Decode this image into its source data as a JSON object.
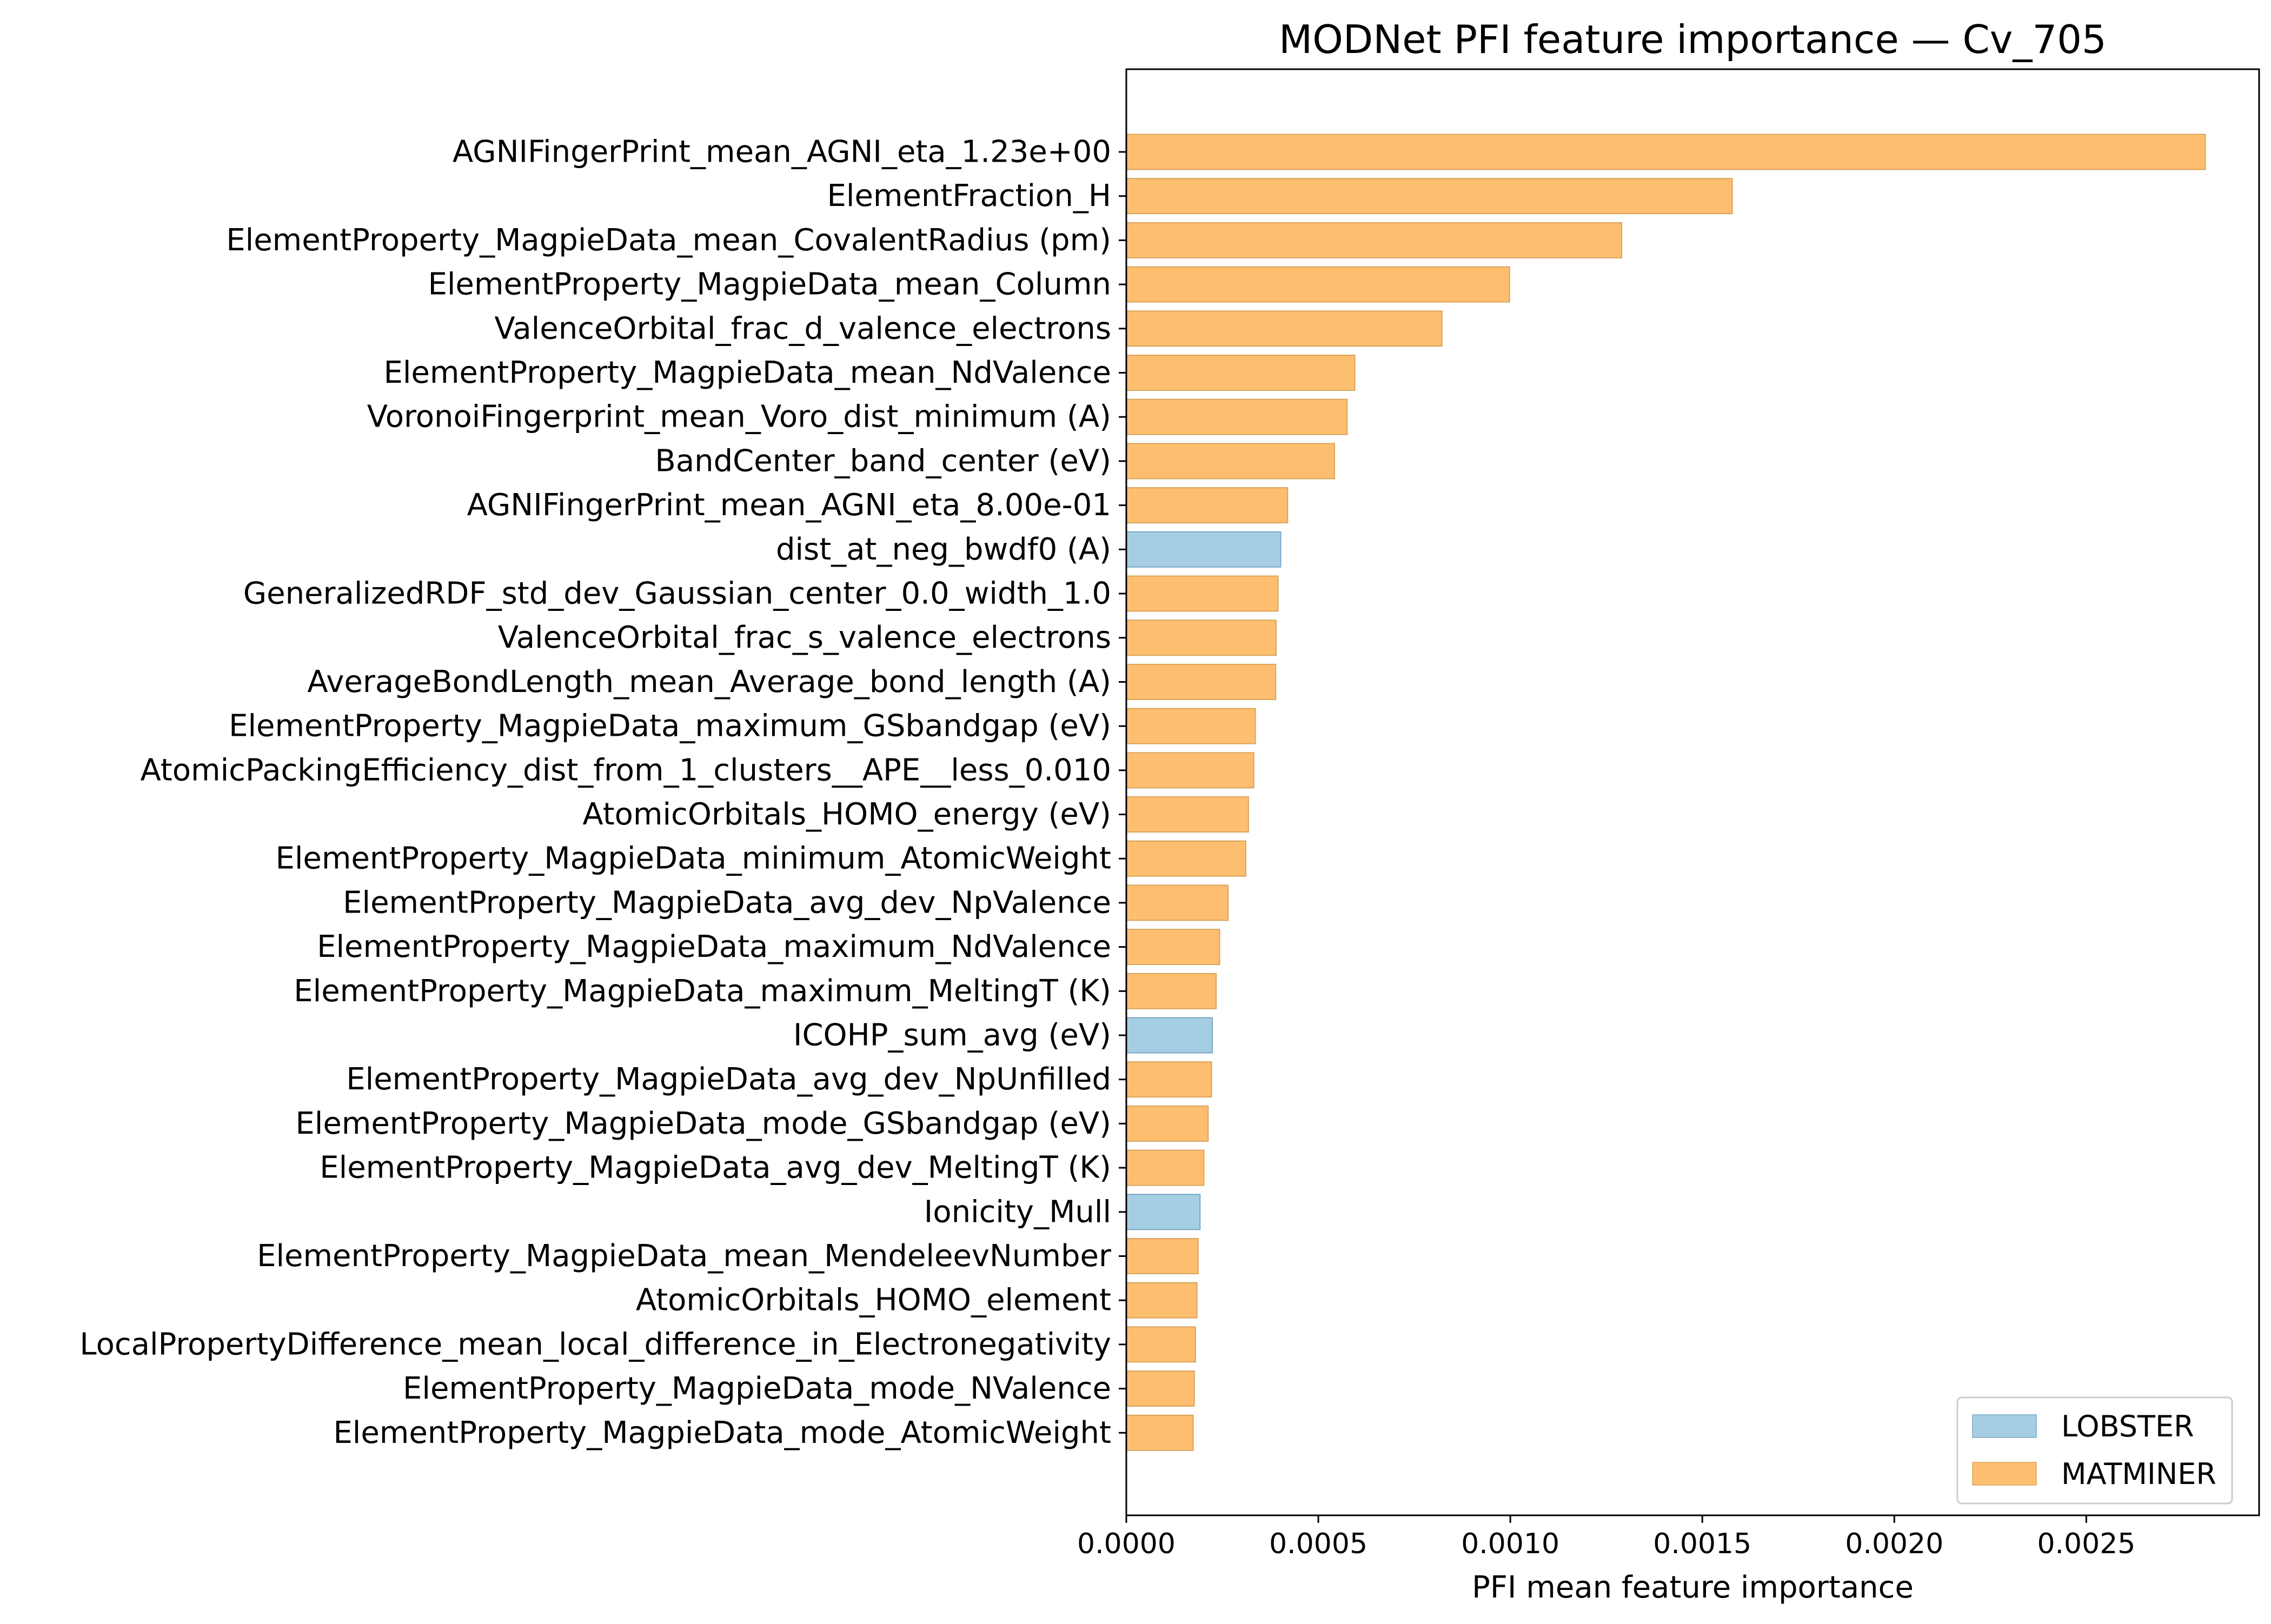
{
  "chart_data": {
    "type": "bar",
    "orientation": "horizontal",
    "title": "MODNet PFI feature importance — Cv_705",
    "xlabel": "PFI mean feature importance",
    "ylabel": "",
    "xlim": [
      0,
      0.00295
    ],
    "xticks": [
      "0.0000",
      "0.0005",
      "0.0010",
      "0.0015",
      "0.0020",
      "0.0025"
    ],
    "xtick_values": [
      0,
      0.0005,
      0.001,
      0.0015,
      0.002,
      0.0025
    ],
    "grid": false,
    "legend_position": "bottom-right",
    "legend": [
      {
        "name": "LOBSTER",
        "color": "#a6cee3"
      },
      {
        "name": "MATMINER",
        "color": "#fdbf6f"
      }
    ],
    "bars": [
      {
        "label": "AGNIFingerPrint_mean_AGNI_eta_1.23e+00",
        "value": 0.00281,
        "group": "MATMINER"
      },
      {
        "label": "ElementFraction_H",
        "value": 0.001578,
        "group": "MATMINER"
      },
      {
        "label": "ElementProperty_MagpieData_mean_CovalentRadius (pm)",
        "value": 0.00129,
        "group": "MATMINER"
      },
      {
        "label": "ElementProperty_MagpieData_mean_Column",
        "value": 0.000998,
        "group": "MATMINER"
      },
      {
        "label": "ValenceOrbital_frac_d_valence_electrons",
        "value": 0.000822,
        "group": "MATMINER"
      },
      {
        "label": "ElementProperty_MagpieData_mean_NdValence",
        "value": 0.000595,
        "group": "MATMINER"
      },
      {
        "label": "VoronoiFingerprint_mean_Voro_dist_minimum (A)",
        "value": 0.000575,
        "group": "MATMINER"
      },
      {
        "label": "BandCenter_band_center (eV)",
        "value": 0.000542,
        "group": "MATMINER"
      },
      {
        "label": "AGNIFingerPrint_mean_AGNI_eta_8.00e-01",
        "value": 0.00042,
        "group": "MATMINER"
      },
      {
        "label": "dist_at_neg_bwdf0 (A)",
        "value": 0.000402,
        "group": "LOBSTER"
      },
      {
        "label": "GeneralizedRDF_std_dev_Gaussian_center_0.0_width_1.0",
        "value": 0.000395,
        "group": "MATMINER"
      },
      {
        "label": "ValenceOrbital_frac_s_valence_electrons",
        "value": 0.00039,
        "group": "MATMINER"
      },
      {
        "label": "AverageBondLength_mean_Average_bond_length (A)",
        "value": 0.000389,
        "group": "MATMINER"
      },
      {
        "label": "ElementProperty_MagpieData_maximum_GSbandgap (eV)",
        "value": 0.000336,
        "group": "MATMINER"
      },
      {
        "label": "AtomicPackingEfficiency_dist_from_1_clusters__APE__less_0.010",
        "value": 0.000332,
        "group": "MATMINER"
      },
      {
        "label": "AtomicOrbitals_HOMO_energy (eV)",
        "value": 0.000318,
        "group": "MATMINER"
      },
      {
        "label": "ElementProperty_MagpieData_minimum_AtomicWeight",
        "value": 0.000311,
        "group": "MATMINER"
      },
      {
        "label": "ElementProperty_MagpieData_avg_dev_NpValence",
        "value": 0.000265,
        "group": "MATMINER"
      },
      {
        "label": "ElementProperty_MagpieData_maximum_NdValence",
        "value": 0.000243,
        "group": "MATMINER"
      },
      {
        "label": "ElementProperty_MagpieData_maximum_MeltingT (K)",
        "value": 0.000234,
        "group": "MATMINER"
      },
      {
        "label": "ICOHP_sum_avg (eV)",
        "value": 0.000224,
        "group": "LOBSTER"
      },
      {
        "label": "ElementProperty_MagpieData_avg_dev_NpUnfilled",
        "value": 0.000222,
        "group": "MATMINER"
      },
      {
        "label": "ElementProperty_MagpieData_mode_GSbandgap (eV)",
        "value": 0.000213,
        "group": "MATMINER"
      },
      {
        "label": "ElementProperty_MagpieData_avg_dev_MeltingT (K)",
        "value": 0.000202,
        "group": "MATMINER"
      },
      {
        "label": "Ionicity_Mull",
        "value": 0.000192,
        "group": "LOBSTER"
      },
      {
        "label": "ElementProperty_MagpieData_mean_MendeleevNumber",
        "value": 0.000187,
        "group": "MATMINER"
      },
      {
        "label": "AtomicOrbitals_HOMO_element",
        "value": 0.000184,
        "group": "MATMINER"
      },
      {
        "label": "LocalPropertyDifference_mean_local_difference_in_Electronegativity",
        "value": 0.00018,
        "group": "MATMINER"
      },
      {
        "label": "ElementProperty_MagpieData_mode_NValence",
        "value": 0.000177,
        "group": "MATMINER"
      },
      {
        "label": "ElementProperty_MagpieData_mode_AtomicWeight",
        "value": 0.000174,
        "group": "MATMINER"
      }
    ]
  }
}
